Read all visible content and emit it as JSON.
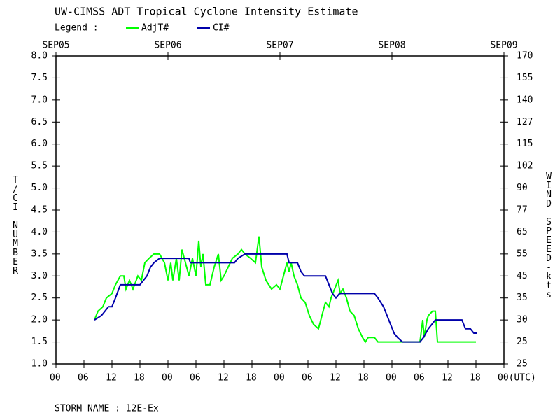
{
  "chart_data": {
    "type": "line",
    "title": "UW-CIMSS ADT Tropical Cyclone Intensity Estimate",
    "legend_label": "Legend :",
    "ylabel": "T/CI NUMBER",
    "y2label": "WIND SPEED-kts",
    "footer": "STORM NAME : 12E-Ex",
    "xlim": [
      0,
      96
    ],
    "ylim": [
      1,
      8
    ],
    "xticks": [
      {
        "value": 0,
        "label": "00"
      },
      {
        "value": 6,
        "label": "06"
      },
      {
        "value": 12,
        "label": "12"
      },
      {
        "value": 18,
        "label": "18"
      },
      {
        "value": 24,
        "label": "00"
      },
      {
        "value": 30,
        "label": "06"
      },
      {
        "value": 36,
        "label": "12"
      },
      {
        "value": 42,
        "label": "18"
      },
      {
        "value": 48,
        "label": "00"
      },
      {
        "value": 54,
        "label": "06"
      },
      {
        "value": 60,
        "label": "12"
      },
      {
        "value": 66,
        "label": "18"
      },
      {
        "value": 72,
        "label": "00"
      },
      {
        "value": 78,
        "label": "06"
      },
      {
        "value": 84,
        "label": "12"
      },
      {
        "value": 90,
        "label": "18"
      },
      {
        "value": 96,
        "label": "00(UTC)"
      }
    ],
    "date_ticks": [
      {
        "value": 0,
        "label": "SEP05"
      },
      {
        "value": 24,
        "label": "SEP06"
      },
      {
        "value": 48,
        "label": "SEP07"
      },
      {
        "value": 72,
        "label": "SEP08"
      },
      {
        "value": 96,
        "label": "SEP09"
      }
    ],
    "yticks": [
      {
        "value": 1,
        "label": "1.0"
      },
      1.5,
      {
        "value": 2,
        "label": "2.0"
      },
      2.5,
      {
        "value": 3,
        "label": "3.0"
      },
      3.5,
      {
        "value": 4,
        "label": "4.0"
      },
      4.5,
      {
        "value": 5,
        "label": "5.0"
      },
      5.5,
      {
        "value": 6,
        "label": "6.0"
      },
      6.5,
      {
        "value": 7,
        "label": "7.0"
      },
      7.5,
      {
        "value": 8,
        "label": "8.0"
      }
    ],
    "y2tick_labels": [
      "25",
      "25",
      "30",
      "35",
      "45",
      "55",
      "65",
      "77",
      "90",
      "102",
      "115",
      "127",
      "140",
      "155",
      "170"
    ],
    "series": [
      {
        "name": "AdjT#",
        "color": "#00ff00",
        "x": [
          8.25,
          9.0,
          10.05,
          10.8,
          12.0,
          12.75,
          13.8,
          14.55,
          15.0,
          15.75,
          16.5,
          17.55,
          18.3,
          19.05,
          19.95,
          21.0,
          22.2,
          23.25,
          24.0,
          24.6,
          25.05,
          25.8,
          26.4,
          27.0,
          27.75,
          28.5,
          29.25,
          30.0,
          30.6,
          31.05,
          31.5,
          32.1,
          33.0,
          33.9,
          34.8,
          35.4,
          36.0,
          36.9,
          37.8,
          39.0,
          39.75,
          40.5,
          41.7,
          42.75,
          43.5,
          44.1,
          45.0,
          46.2,
          47.25,
          48.0,
          48.75,
          49.5,
          49.95,
          50.4,
          51.0,
          51.75,
          52.5,
          53.4,
          54.3,
          55.2,
          56.25,
          57.0,
          57.75,
          58.5,
          58.95,
          59.7,
          60.45,
          60.9,
          61.5,
          62.25,
          63.0,
          63.9,
          64.8,
          65.7,
          66.3,
          66.9,
          68.25,
          69.0,
          78.0,
          78.6,
          78.9,
          79.5,
          79.8,
          80.7,
          81.3,
          81.75,
          90.0
        ],
        "values": [
          2.0,
          2.2,
          2.3,
          2.5,
          2.6,
          2.8,
          3.0,
          3.0,
          2.7,
          2.9,
          2.7,
          3.0,
          2.9,
          3.3,
          3.4,
          3.5,
          3.5,
          3.3,
          2.9,
          3.3,
          2.9,
          3.4,
          2.9,
          3.6,
          3.3,
          3.0,
          3.4,
          3.0,
          3.8,
          3.2,
          3.5,
          2.8,
          2.8,
          3.2,
          3.5,
          2.9,
          3.0,
          3.2,
          3.4,
          3.5,
          3.6,
          3.5,
          3.4,
          3.3,
          3.9,
          3.2,
          2.9,
          2.7,
          2.8,
          2.7,
          3.0,
          3.3,
          3.1,
          3.3,
          3.0,
          2.8,
          2.5,
          2.4,
          2.1,
          1.9,
          1.8,
          2.1,
          2.4,
          2.3,
          2.5,
          2.7,
          2.9,
          2.6,
          2.7,
          2.5,
          2.2,
          2.1,
          1.8,
          1.6,
          1.5,
          1.6,
          1.6,
          1.5,
          1.5,
          2.0,
          1.6,
          2.0,
          2.1,
          2.2,
          2.2,
          1.5,
          1.5
        ]
      },
      {
        "name": "CI#",
        "color": "#0000aa",
        "x": [
          8.25,
          9.75,
          10.5,
          11.25,
          12.0,
          12.75,
          13.8,
          18.0,
          18.75,
          19.5,
          20.25,
          21.0,
          22.2,
          28.5,
          28.8,
          38.25,
          39.0,
          40.5,
          49.5,
          49.95,
          51.75,
          52.5,
          53.25,
          57.75,
          58.5,
          59.25,
          60.0,
          60.75,
          68.25,
          69.0,
          70.2,
          70.95,
          71.7,
          72.45,
          73.2,
          74.25,
          78.0,
          78.75,
          79.8,
          81.3,
          87.0,
          87.75,
          88.8,
          89.55,
          90.3
        ],
        "values": [
          2.0,
          2.1,
          2.2,
          2.3,
          2.3,
          2.5,
          2.8,
          2.8,
          2.9,
          3.0,
          3.2,
          3.3,
          3.4,
          3.4,
          3.3,
          3.3,
          3.4,
          3.5,
          3.5,
          3.3,
          3.3,
          3.1,
          3.0,
          3.0,
          2.8,
          2.6,
          2.5,
          2.6,
          2.6,
          2.5,
          2.3,
          2.1,
          1.9,
          1.7,
          1.6,
          1.5,
          1.5,
          1.6,
          1.8,
          2.0,
          2.0,
          1.8,
          1.8,
          1.7,
          1.7
        ]
      }
    ]
  }
}
